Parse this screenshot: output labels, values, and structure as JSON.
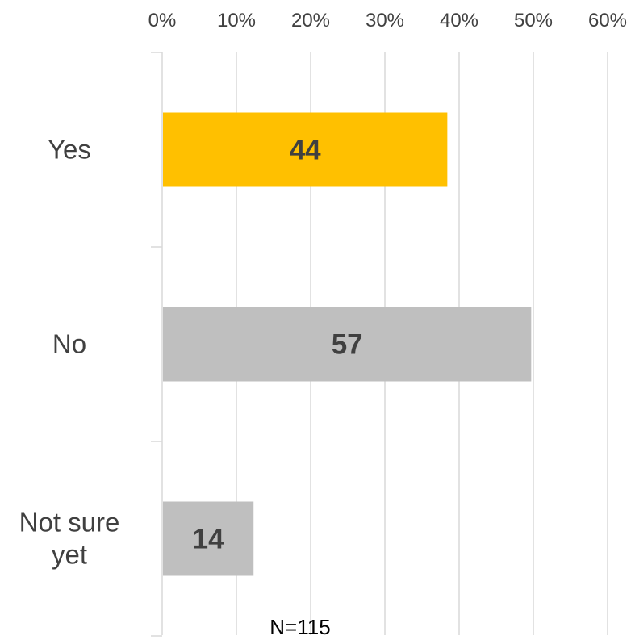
{
  "chart_data": {
    "type": "bar",
    "orientation": "horizontal",
    "categories": [
      "Yes",
      "No",
      "Not sure yet"
    ],
    "category_lines": [
      [
        "Yes"
      ],
      [
        "No"
      ],
      [
        "Not sure",
        "yet"
      ]
    ],
    "values_percent": [
      38.3,
      49.6,
      12.2
    ],
    "data_labels": [
      "44",
      "57",
      "14"
    ],
    "x_ticks": [
      "0%",
      "10%",
      "20%",
      "30%",
      "40%",
      "50%",
      "60%"
    ],
    "xlim": [
      0,
      60
    ],
    "x_axis_position": "top",
    "grid": true,
    "legend": "none",
    "note": "N=115"
  },
  "colors": {
    "highlight": "#FFC000",
    "default_bar": "#BFBFBF",
    "gridline": "#D9D9D9",
    "text": "#404040"
  }
}
